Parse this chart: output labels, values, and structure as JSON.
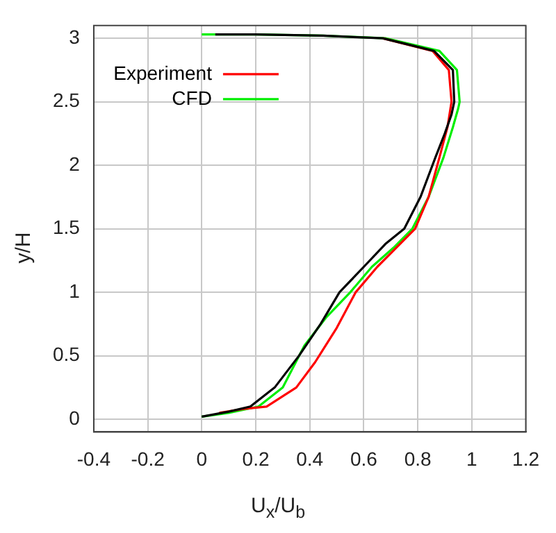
{
  "chart_data": {
    "type": "line",
    "xlabel": "U$_{x}$/U$_{b}$",
    "ylabel": "y/H",
    "xlim": [
      -0.4,
      1.2
    ],
    "xticks": [
      -0.4,
      -0.2,
      0,
      0.2,
      0.4,
      0.6,
      0.8,
      1,
      1.2
    ],
    "ylim": [
      -0.1,
      3.1
    ],
    "yticks": [
      0,
      0.5,
      1,
      1.5,
      2,
      2.5,
      3
    ],
    "grid": true,
    "legend": "top left",
    "marker": "none",
    "line_style": "solid",
    "series": [
      {
        "color": "#000000",
        "x": [
          0,
          0.1,
          0.18,
          0.27,
          0.36,
          0.44,
          0.51,
          0.6,
          0.68,
          0.75,
          0.81,
          0.865,
          0.9,
          0.925,
          0.935,
          0.93,
          0.86,
          0.67,
          0.45,
          0.2,
          0.05
        ],
        "values": [
          0.02,
          0.06,
          0.1,
          0.25,
          0.5,
          0.75,
          1,
          1.2,
          1.38,
          1.5,
          1.75,
          2.06,
          2.25,
          2.4,
          2.5,
          2.75,
          2.9,
          3.0,
          3.02,
          3.03,
          3.03
        ]
      },
      {
        "name": "Experiment",
        "color": "#ff0000",
        "x": [
          0.065,
          0.15,
          0.24,
          0.35,
          0.42,
          0.5,
          0.57,
          0.65,
          0.72,
          0.79,
          0.84,
          0.88,
          0.91,
          0.925,
          0.915,
          0.855,
          0.67
        ],
        "values": [
          0.05,
          0.08,
          0.1,
          0.25,
          0.45,
          0.72,
          1,
          1.2,
          1.35,
          1.5,
          1.75,
          2.06,
          2.3,
          2.5,
          2.75,
          2.9,
          3.0
        ]
      },
      {
        "name": "CFD",
        "color": "#00ee00",
        "x": [
          0,
          0.1,
          0.21,
          0.3,
          0.38,
          0.46,
          0.55,
          0.63,
          0.71,
          0.78,
          0.84,
          0.895,
          0.93,
          0.95,
          0.955,
          0.945,
          0.88,
          0.68,
          0.45,
          0.2,
          0
        ],
        "values": [
          0.02,
          0.05,
          0.1,
          0.25,
          0.58,
          0.8,
          1,
          1.2,
          1.35,
          1.5,
          1.75,
          2.06,
          2.3,
          2.45,
          2.5,
          2.75,
          2.9,
          3.0,
          3.02,
          3.03,
          3.03
        ]
      }
    ]
  }
}
